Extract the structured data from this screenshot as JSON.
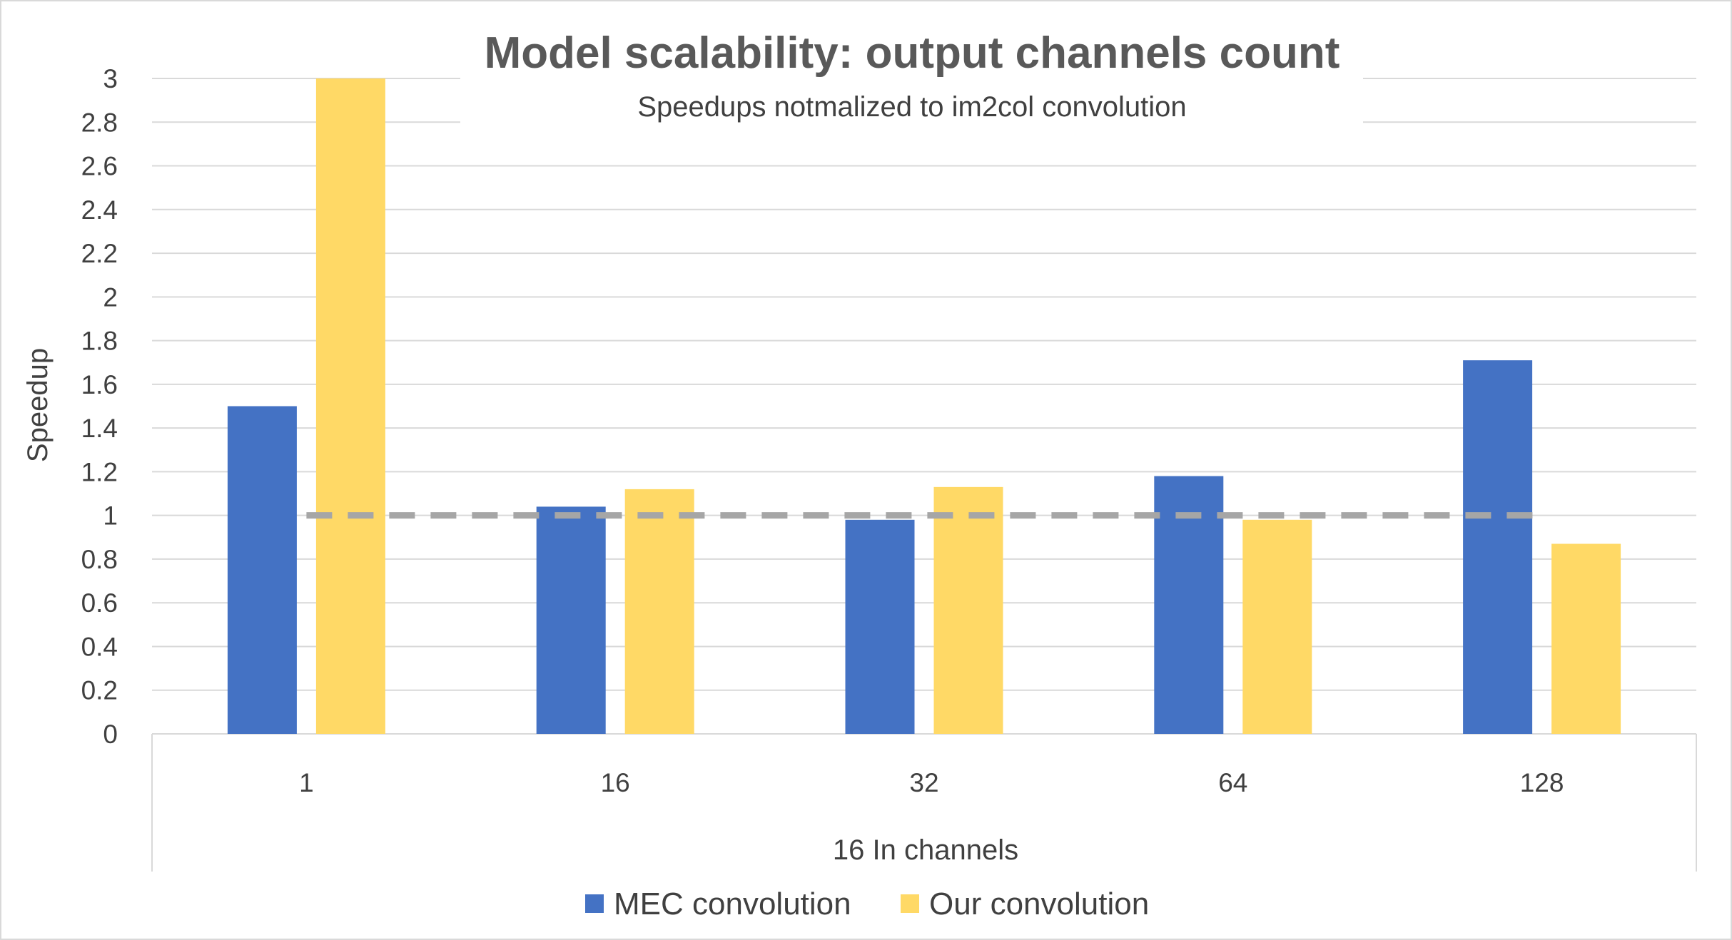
{
  "chart_data": {
    "type": "bar",
    "title": "Model scalability: output channels count",
    "subtitle": "Speedups notmalized to im2col convolution",
    "xlabel": "16 In channels",
    "ylabel": "Speedup",
    "categories": [
      "1",
      "16",
      "32",
      "64",
      "128"
    ],
    "series": [
      {
        "name": "MEC convolution",
        "color": "#4472c4",
        "values": [
          1.5,
          1.04,
          0.98,
          1.18,
          1.71
        ]
      },
      {
        "name": "Our convolution",
        "color": "#ffd966",
        "values": [
          3.0,
          1.12,
          1.13,
          0.98,
          0.87
        ]
      }
    ],
    "ylim": [
      0,
      3
    ],
    "yticks": [
      "0",
      "0.2",
      "0.4",
      "0.6",
      "0.8",
      "1",
      "1.2",
      "1.4",
      "1.6",
      "1.8",
      "2",
      "2.2",
      "2.4",
      "2.6",
      "2.8",
      "3"
    ],
    "reference_line": {
      "value": 1,
      "style": "dashed",
      "color": "#a6a6a6"
    },
    "grid": true,
    "legend_position": "bottom"
  }
}
